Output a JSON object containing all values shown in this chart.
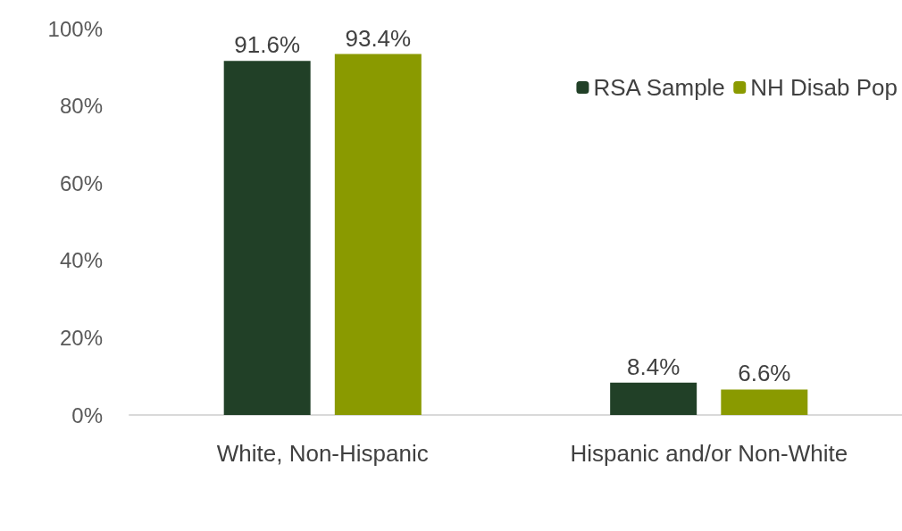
{
  "chart_data": {
    "type": "bar",
    "categories": [
      "White, Non-Hispanic",
      "Hispanic and/or Non-White"
    ],
    "series": [
      {
        "name": "RSA Sample",
        "color": "#214027",
        "values": [
          91.6,
          8.4
        ],
        "value_labels": [
          "91.6%",
          "8.4%"
        ]
      },
      {
        "name": "NH Disab Pop",
        "color": "#8a9a00",
        "values": [
          93.4,
          6.6
        ],
        "value_labels": [
          "93.4%",
          "6.6%"
        ]
      }
    ],
    "ylim": [
      0,
      100
    ],
    "yticks": [
      {
        "value": 0,
        "label": "0%"
      },
      {
        "value": 20,
        "label": "20%"
      },
      {
        "value": 40,
        "label": "40%"
      },
      {
        "value": 60,
        "label": "60%"
      },
      {
        "value": 80,
        "label": "80%"
      },
      {
        "value": 100,
        "label": "100%"
      }
    ],
    "grid": false,
    "legend": "top right"
  }
}
